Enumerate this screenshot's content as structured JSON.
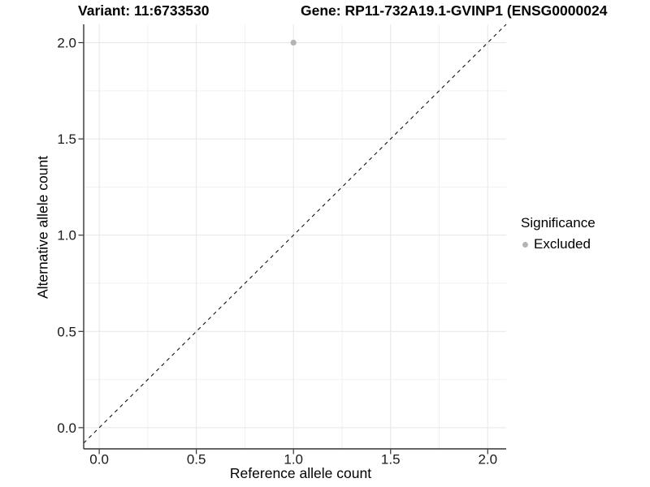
{
  "header": {
    "variant_title": "Variant: 11:6733530",
    "gene_title": "Gene: RP11-732A19.1-GVINP1 (ENSG0000024"
  },
  "legend": {
    "title": "Significance",
    "items": [
      {
        "label": "Excluded",
        "marker": "circle-icon",
        "color": "#b4b4b4"
      }
    ]
  },
  "chart_data": {
    "type": "scatter",
    "title": "Variant: 11:6733530  /  Gene: RP11-732A19.1-GVINP1 (ENSG0000024",
    "xlabel": "Reference allele count",
    "ylabel": "Alternative allele count",
    "xlim": [
      -0.08,
      2.095
    ],
    "ylim": [
      -0.11,
      2.095
    ],
    "x_ticks": [
      0.0,
      0.5,
      1.0,
      1.5,
      2.0
    ],
    "y_ticks": [
      0.0,
      0.5,
      1.0,
      1.5,
      2.0
    ],
    "x_minor_ticks": [
      0.25,
      0.75,
      1.25,
      1.75
    ],
    "y_minor_ticks": [
      0.25,
      0.75,
      1.25,
      1.75
    ],
    "grid": "major+minor",
    "legend_position": "right",
    "series": [
      {
        "name": "Excluded",
        "color": "#b4b4b4",
        "points": [
          {
            "x": 1.0,
            "y": 2.0
          }
        ]
      }
    ],
    "reference_line": {
      "kind": "identity y=x",
      "style": "dashed",
      "color": "#111111"
    },
    "colors": {
      "background": "#ffffff",
      "grid_major": "#e8e8e8",
      "grid_minor": "#f1f1f1",
      "axis": "#333333",
      "tick_text": "#1a1a1a",
      "title_text": "#000000"
    }
  }
}
